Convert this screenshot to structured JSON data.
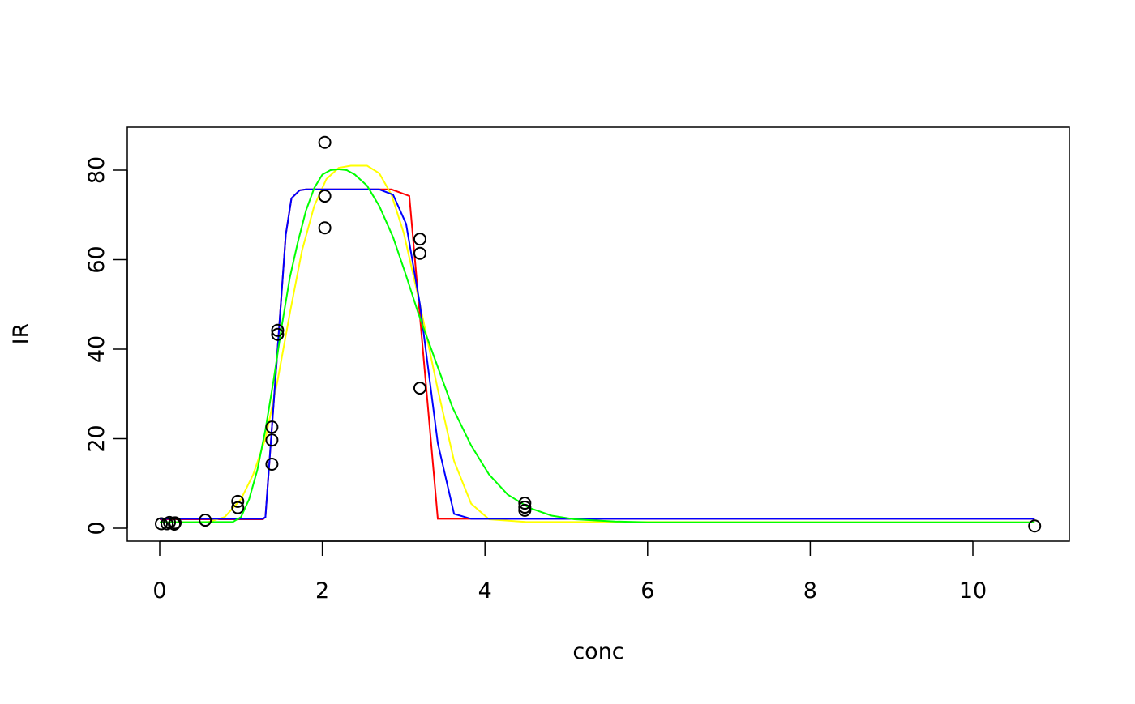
{
  "chart_data": {
    "type": "scatter",
    "title": "",
    "xlabel": "conc",
    "ylabel": "IR",
    "xlim": [
      -0.2,
      11.0
    ],
    "ylim": [
      -3,
      90
    ],
    "xticks": [
      0,
      2,
      4,
      6,
      8,
      10
    ],
    "yticks": [
      0,
      20,
      40,
      60,
      80
    ],
    "grid": false,
    "points": {
      "marker": "open-circle",
      "x": [
        0.02,
        0.09,
        0.12,
        0.18,
        0.19,
        0.56,
        0.96,
        0.96,
        1.38,
        1.38,
        1.38,
        1.45,
        1.45,
        2.03,
        2.03,
        2.03,
        3.2,
        3.2,
        3.2,
        4.49,
        4.49,
        4.49,
        10.76
      ],
      "y": [
        1.0,
        1.0,
        1.3,
        0.9,
        1.2,
        1.8,
        6.0,
        4.6,
        22.6,
        19.7,
        14.3,
        44.2,
        43.3,
        86.2,
        74.2,
        67.1,
        64.6,
        61.4,
        31.3,
        5.6,
        4.7,
        4.0,
        0.5
      ]
    },
    "series": [
      {
        "color": "#ff0000",
        "type": "line",
        "x": [
          0,
          1.27,
          1.3,
          1.45,
          1.55,
          1.62,
          1.72,
          1.8,
          2.85,
          3.07,
          3.42,
          10.76
        ],
        "y": [
          2.0,
          2.0,
          2.5,
          40,
          65.6,
          73.7,
          75.5,
          75.7,
          75.7,
          74.2,
          2.1,
          2.1
        ]
      },
      {
        "color": "#ffff00",
        "type": "line",
        "x": [
          0,
          0.6,
          0.8,
          1.0,
          1.15,
          1.3,
          1.45,
          1.6,
          1.75,
          1.9,
          2.05,
          2.2,
          2.35,
          2.55,
          2.7,
          2.85,
          3.0,
          3.2,
          3.42,
          3.62,
          3.83,
          4.05,
          4.5,
          10.76
        ],
        "y": [
          1.3,
          1.4,
          2.5,
          6.5,
          12,
          20,
          33,
          48,
          62,
          72,
          78,
          80.5,
          81,
          81,
          79.3,
          74.5,
          66,
          50,
          31,
          15,
          5.5,
          2,
          1.4,
          1.3
        ]
      },
      {
        "color": "#0000ff",
        "type": "line",
        "x": [
          0,
          1.27,
          1.3,
          1.45,
          1.55,
          1.62,
          1.72,
          1.8,
          2.7,
          2.87,
          3.03,
          3.2,
          3.42,
          3.62,
          3.83,
          10.76
        ],
        "y": [
          2.1,
          2.1,
          2.5,
          40,
          65.6,
          73.7,
          75.5,
          75.7,
          75.7,
          74.5,
          68,
          50,
          19,
          3.2,
          2.1,
          2.1
        ]
      },
      {
        "color": "#00ff00",
        "type": "line",
        "x": [
          0,
          0.9,
          1.0,
          1.1,
          1.2,
          1.3,
          1.4,
          1.5,
          1.6,
          1.7,
          1.8,
          1.9,
          2.0,
          2.1,
          2.2,
          2.3,
          2.4,
          2.55,
          2.7,
          2.87,
          3.02,
          3.18,
          3.4,
          3.6,
          3.83,
          4.05,
          4.28,
          4.55,
          4.82,
          5.1,
          5.6,
          6.0,
          10.76
        ],
        "y": [
          1.3,
          1.4,
          2.5,
          6.5,
          13,
          22,
          33,
          45,
          56,
          64,
          71,
          76,
          79,
          80,
          80.2,
          80,
          79,
          76.5,
          72,
          65,
          57,
          48,
          37,
          27,
          18.5,
          12,
          7.5,
          4.5,
          2.8,
          2.0,
          1.5,
          1.3,
          1.3
        ]
      }
    ]
  }
}
